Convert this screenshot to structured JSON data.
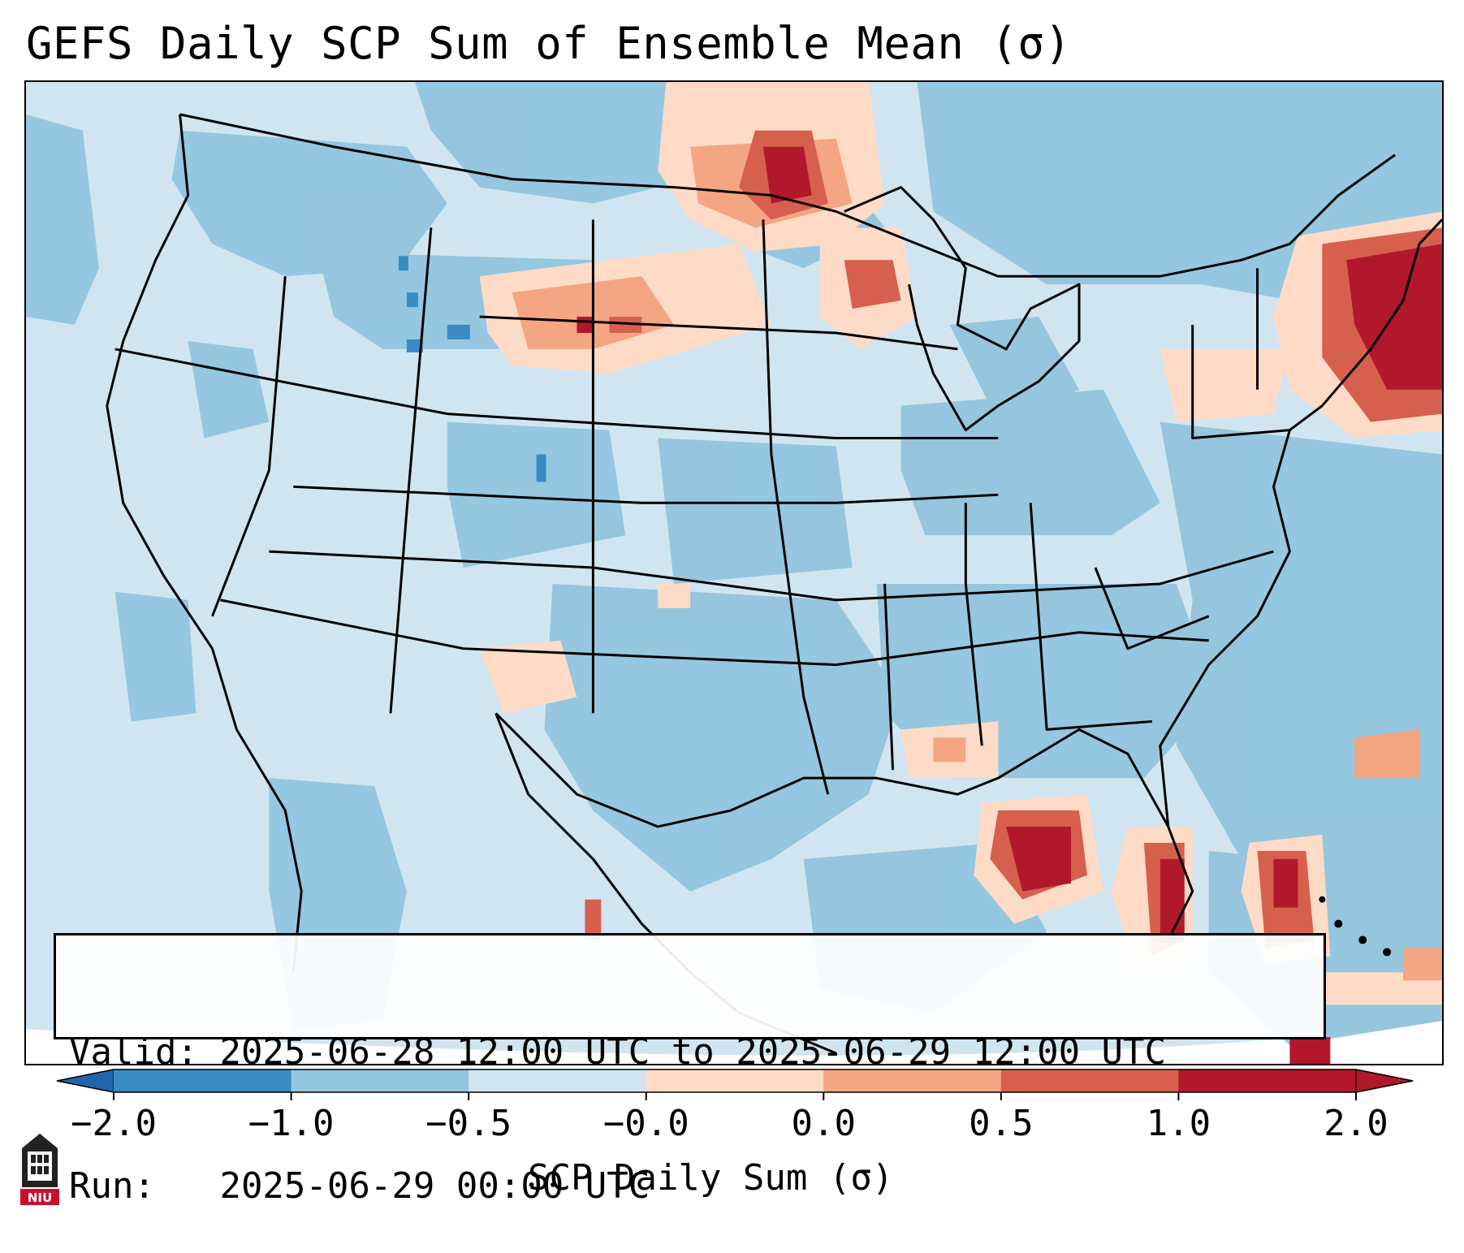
{
  "title": "GEFS Daily SCP Sum of Ensemble Mean (σ)",
  "info": {
    "valid_label": "Valid:",
    "valid_value": "2025-06-28 12:00 UTC to 2025-06-29 12:00 UTC",
    "run_label": "Run:",
    "run_value": "2025-06-29 00:00 UTC"
  },
  "colorbar": {
    "label": "SCP Daily Sum (σ)",
    "ticks": [
      "−2.0",
      "−1.0",
      "−0.5",
      "−0.0",
      "0.0",
      "0.5",
      "1.0",
      "2.0"
    ],
    "colors": [
      "#3a8bc4",
      "#92c5de",
      "#d1e5f0",
      "#f7f7f7",
      "#fddbc7",
      "#f4a582",
      "#d6604d",
      "#b2182b"
    ],
    "under_color": "#2166ac",
    "over_color": "#b2182b"
  },
  "map": {
    "background_color": "#d1e5f0",
    "anomalies": [
      {
        "name": "Northern Minnesota / Manitoba",
        "intensity": "high"
      },
      {
        "name": "Northern Plains / Black Hills",
        "intensity": "moderate"
      },
      {
        "name": "Upper Michigan / Wisconsin",
        "intensity": "moderate"
      },
      {
        "name": "New England coast",
        "intensity": "high"
      },
      {
        "name": "Eastern Gulf of Mexico",
        "intensity": "high"
      },
      {
        "name": "Florida peninsula",
        "intensity": "high"
      },
      {
        "name": "Bahamas",
        "intensity": "high"
      },
      {
        "name": "Gulf coast Louisiana",
        "intensity": "moderate"
      },
      {
        "name": "Western Atlantic",
        "intensity": "low"
      }
    ]
  },
  "logo": {
    "text": "NIU"
  }
}
